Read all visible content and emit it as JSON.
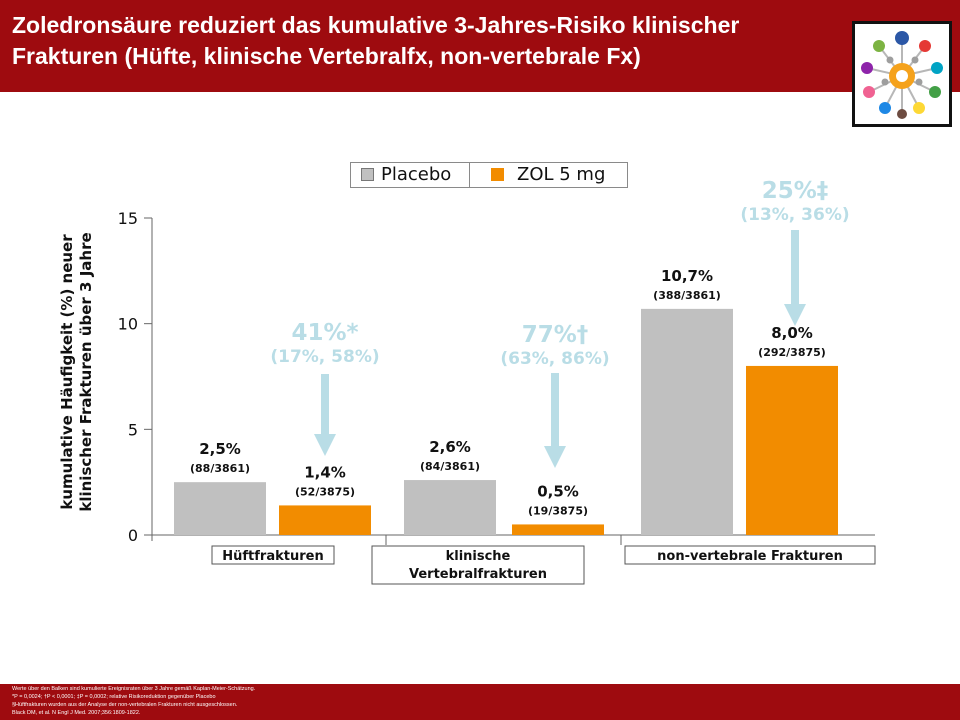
{
  "header": {
    "title_line1": "Zoledronsäure reduziert das kumulative 3-Jahres-Risiko klinischer",
    "title_line2": "Frakturen (Hüfte, klinische Vertebralfx, non-vertebrale Fx)",
    "background_color": "#9e0b0f"
  },
  "logo": {
    "icon": "molecule-network-icon"
  },
  "chart_data": {
    "type": "bar",
    "ylabel_line1": "kumulative Häufigkeit (%) neuer",
    "ylabel_line2": "klinischer Frakturen über 3 Jahre",
    "ylim": [
      0,
      15
    ],
    "yticks": [
      "0",
      "5",
      "10",
      "15"
    ],
    "legend_position": "top",
    "series": [
      {
        "name": "Placebo",
        "color": "#c0c0c0",
        "values": [
          2.5,
          2.6,
          10.7
        ]
      },
      {
        "name": "ZOL 5 mg",
        "color": "#f28c00",
        "values": [
          1.4,
          0.5,
          8.0
        ]
      }
    ],
    "categories": [
      {
        "label_line1": "Hüftfrakturen",
        "label_line2": ""
      },
      {
        "label_line1": "klinische",
        "label_line2": "Vertebralfrakturen"
      },
      {
        "label_line1": "non-vertebrale Frakturen",
        "label_line2": ""
      }
    ],
    "bar_labels": [
      {
        "value": "2,5%",
        "count": "(88/3861)"
      },
      {
        "value": "1,4%",
        "count": "(52/3875)"
      },
      {
        "value": "2,6%",
        "count": "(84/3861)"
      },
      {
        "value": "0,5%",
        "count": "(19/3875)"
      },
      {
        "value": "10,7%",
        "count": "(388/3861)"
      },
      {
        "value": "8,0%",
        "count": "(292/3875)"
      }
    ],
    "annotations": [
      {
        "reduction": "41%*",
        "ci": "(17%, 58%)"
      },
      {
        "reduction": "77%†",
        "ci": "(63%, 86%)"
      },
      {
        "reduction": "25%‡",
        "ci": "(13%, 36%)"
      }
    ],
    "annotation_color": "#b9dde6",
    "grid": false
  },
  "footer": {
    "line1": "Werte über den Balken sind kumulierte Ereignisraten über 3 Jahre gemäß Kaplan-Meier-Schätzung.",
    "line2": "*P = 0,0024; †P < 0,0001; ‡P = 0,0002; relative Risikoreduktion gegenüber Placebo",
    "line3": "§Hüftfrakturen wurden aus der Analyse der non-vertebralen Frakturen nicht ausgeschlossen.",
    "line4": "Black DM, et al. N Engl J Med. 2007;356:1809-1822."
  }
}
